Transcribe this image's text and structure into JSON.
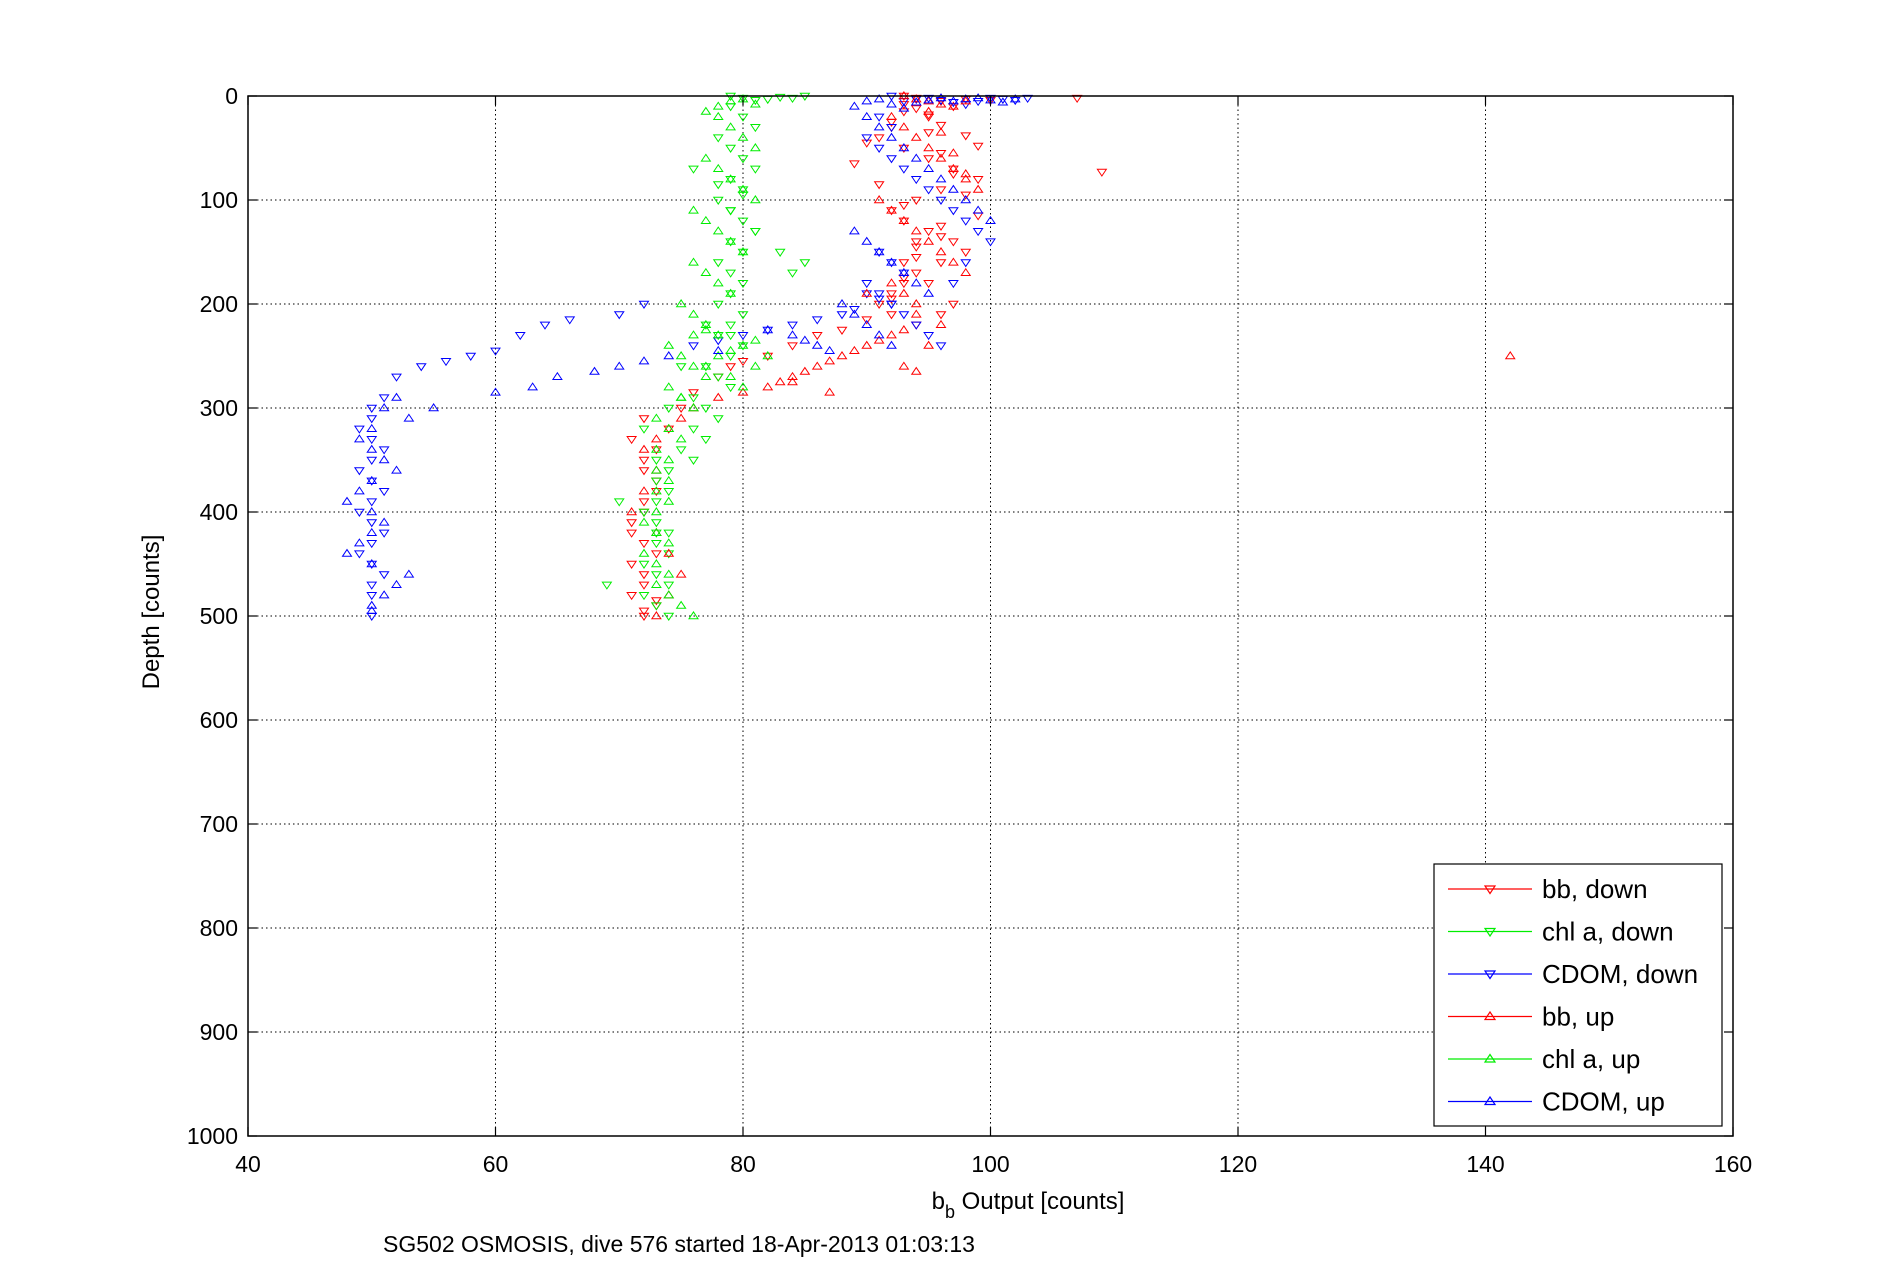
{
  "chart_data": {
    "type": "scatter",
    "xlabel_main": "b",
    "xlabel_sub": "b",
    "xlabel_rest": " Output [counts]",
    "ylabel": "Depth [counts]",
    "caption": "SG502 OSMOSIS, dive 576 started 18-Apr-2013 01:03:13",
    "xlim": [
      40,
      160
    ],
    "ylim": [
      0,
      1000
    ],
    "y_reversed": true,
    "grid": true,
    "legend_position": "bottom-right",
    "x_ticks": [
      "40",
      "60",
      "80",
      "100",
      "120",
      "140",
      "160"
    ],
    "y_ticks": [
      "0",
      "100",
      "200",
      "300",
      "400",
      "500",
      "600",
      "700",
      "800",
      "900",
      "1000"
    ],
    "series": [
      {
        "name": "bb, down",
        "color": "#ff0000",
        "marker": "triangle-down",
        "x": [
          93,
          94,
          96,
          98,
          100,
          97,
          95,
          92,
          91,
          93,
          95,
          97,
          99,
          96,
          94,
          92,
          93,
          95,
          97,
          98,
          96,
          94,
          93,
          92,
          91,
          93,
          95,
          96,
          97,
          98,
          99,
          96,
          94,
          93,
          92,
          94,
          96,
          93,
          91,
          89,
          90,
          92,
          93,
          94,
          95,
          96,
          98,
          99,
          107,
          109,
          94,
          93,
          95,
          97,
          92,
          90,
          96,
          94,
          88,
          86,
          84,
          82,
          80,
          79,
          78,
          76,
          75,
          74,
          73,
          72,
          73,
          72,
          71,
          73,
          72,
          71,
          72,
          73,
          72,
          71,
          72,
          71,
          72,
          73,
          72,
          71,
          72,
          72,
          73
        ],
        "y": [
          0,
          2,
          5,
          3,
          4,
          10,
          20,
          30,
          40,
          50,
          60,
          70,
          80,
          90,
          100,
          110,
          120,
          130,
          140,
          150,
          160,
          170,
          180,
          190,
          200,
          15,
          35,
          55,
          75,
          95,
          115,
          135,
          155,
          175,
          195,
          145,
          125,
          105,
          85,
          65,
          45,
          25,
          8,
          12,
          18,
          28,
          38,
          48,
          2,
          73,
          140,
          160,
          180,
          200,
          210,
          215,
          210,
          220,
          225,
          230,
          240,
          250,
          255,
          260,
          270,
          285,
          300,
          320,
          340,
          360,
          380,
          400,
          420,
          440,
          460,
          480,
          500,
          490,
          470,
          450,
          430,
          410,
          390,
          370,
          350,
          330,
          310,
          495,
          485
        ]
      },
      {
        "name": "chl a, down",
        "color": "#00ee00",
        "marker": "triangle-down",
        "x": [
          79,
          80,
          81,
          82,
          83,
          84,
          85,
          79,
          80,
          81,
          78,
          79,
          80,
          81,
          79,
          80,
          78,
          79,
          80,
          81,
          79,
          80,
          78,
          79,
          80,
          79,
          78,
          80,
          79,
          78,
          80,
          79,
          77,
          78,
          79,
          76,
          77,
          78,
          76,
          77,
          75,
          76,
          74,
          73,
          74,
          73,
          72,
          73,
          74,
          73,
          74,
          72,
          73,
          74,
          72,
          73,
          74,
          72,
          73,
          69,
          70,
          74,
          73,
          75,
          77,
          79,
          76,
          78,
          80,
          79,
          81,
          83,
          84,
          85
        ],
        "y": [
          0,
          2,
          4,
          3,
          1,
          2,
          0,
          10,
          20,
          30,
          40,
          50,
          60,
          70,
          80,
          90,
          100,
          110,
          120,
          130,
          140,
          150,
          160,
          170,
          180,
          190,
          200,
          210,
          220,
          230,
          240,
          250,
          260,
          270,
          280,
          290,
          300,
          310,
          320,
          330,
          340,
          350,
          360,
          370,
          380,
          390,
          400,
          410,
          420,
          430,
          440,
          450,
          460,
          470,
          480,
          490,
          500,
          320,
          350,
          470,
          390,
          300,
          420,
          260,
          220,
          230,
          70,
          85,
          95,
          110,
          130,
          150,
          170,
          160
        ]
      },
      {
        "name": "CDOM, down",
        "color": "#0000ff",
        "marker": "triangle-down",
        "x": [
          92,
          93,
          94,
          95,
          96,
          97,
          98,
          99,
          100,
          101,
          102,
          103,
          91,
          92,
          90,
          91,
          92,
          93,
          94,
          95,
          96,
          97,
          98,
          99,
          100,
          91,
          92,
          93,
          90,
          91,
          92,
          93,
          94,
          95,
          96,
          97,
          98,
          90,
          91,
          92,
          89,
          88,
          86,
          84,
          82,
          80,
          78,
          76,
          72,
          70,
          66,
          64,
          62,
          60,
          58,
          56,
          54,
          52,
          51,
          50,
          50,
          49,
          50,
          51,
          50,
          49,
          50,
          51,
          50,
          49,
          50,
          51,
          50,
          49,
          50,
          51,
          50,
          50,
          50
        ],
        "y": [
          0,
          5,
          3,
          2,
          4,
          6,
          8,
          5,
          2,
          3,
          4,
          2,
          20,
          30,
          40,
          50,
          60,
          70,
          80,
          90,
          100,
          110,
          120,
          130,
          140,
          150,
          160,
          170,
          180,
          190,
          200,
          210,
          220,
          230,
          240,
          180,
          160,
          190,
          195,
          200,
          205,
          210,
          215,
          220,
          225,
          230,
          235,
          240,
          200,
          210,
          215,
          220,
          230,
          245,
          250,
          255,
          260,
          270,
          290,
          300,
          310,
          320,
          330,
          340,
          350,
          360,
          370,
          380,
          390,
          400,
          410,
          420,
          430,
          440,
          450,
          460,
          470,
          480,
          500
        ]
      },
      {
        "name": "bb, up",
        "color": "#ff0000",
        "marker": "triangle-up",
        "x": [
          93,
          94,
          95,
          96,
          97,
          98,
          92,
          93,
          94,
          95,
          96,
          97,
          98,
          99,
          91,
          92,
          93,
          94,
          95,
          96,
          97,
          98,
          92,
          93,
          94,
          95,
          96,
          97,
          98,
          94,
          93,
          92,
          91,
          90,
          89,
          88,
          87,
          86,
          85,
          84,
          83,
          82,
          80,
          78,
          76,
          75,
          74,
          73,
          72,
          73,
          72,
          71,
          73,
          74,
          75,
          74,
          73,
          142,
          93,
          94,
          95,
          96,
          87,
          84,
          90
        ],
        "y": [
          0,
          3,
          5,
          8,
          10,
          5,
          20,
          30,
          40,
          50,
          60,
          70,
          80,
          90,
          100,
          110,
          120,
          130,
          140,
          150,
          160,
          170,
          180,
          190,
          200,
          15,
          35,
          55,
          75,
          210,
          225,
          230,
          235,
          240,
          245,
          250,
          255,
          260,
          265,
          270,
          275,
          280,
          285,
          290,
          300,
          310,
          320,
          330,
          340,
          360,
          380,
          400,
          420,
          440,
          460,
          480,
          500,
          250,
          260,
          265,
          240,
          220,
          285,
          275,
          190
        ]
      },
      {
        "name": "chl a, up",
        "color": "#00ee00",
        "marker": "triangle-up",
        "x": [
          77,
          78,
          79,
          80,
          81,
          78,
          79,
          80,
          81,
          77,
          78,
          79,
          80,
          81,
          76,
          77,
          78,
          79,
          80,
          76,
          77,
          78,
          79,
          75,
          76,
          77,
          78,
          74,
          75,
          76,
          77,
          74,
          75,
          76,
          73,
          74,
          75,
          73,
          74,
          73,
          74,
          73,
          74,
          73,
          72,
          73,
          74,
          72,
          73,
          74,
          73,
          74,
          75,
          76,
          77,
          78,
          79,
          80,
          81,
          76,
          77,
          82,
          81,
          79,
          80,
          75
        ],
        "y": [
          15,
          10,
          5,
          3,
          8,
          20,
          30,
          40,
          50,
          60,
          70,
          80,
          90,
          100,
          110,
          120,
          130,
          140,
          150,
          160,
          170,
          180,
          190,
          200,
          210,
          220,
          230,
          240,
          250,
          260,
          270,
          280,
          290,
          300,
          310,
          320,
          330,
          340,
          350,
          360,
          370,
          380,
          390,
          400,
          410,
          420,
          430,
          440,
          450,
          460,
          470,
          480,
          490,
          500,
          260,
          250,
          245,
          240,
          235,
          230,
          225,
          250,
          260,
          270,
          280,
          290
        ]
      },
      {
        "name": "CDOM, up",
        "color": "#0000ff",
        "marker": "triangle-up",
        "x": [
          89,
          90,
          91,
          92,
          93,
          94,
          95,
          96,
          97,
          98,
          99,
          100,
          101,
          102,
          90,
          91,
          92,
          93,
          94,
          95,
          96,
          97,
          98,
          99,
          100,
          89,
          90,
          91,
          92,
          93,
          94,
          95,
          88,
          89,
          90,
          91,
          92,
          87,
          86,
          85,
          84,
          82,
          78,
          74,
          72,
          70,
          68,
          65,
          63,
          60,
          55,
          53,
          52,
          51,
          50,
          49,
          50,
          51,
          52,
          50,
          49,
          48,
          50,
          51,
          50,
          49,
          48,
          50,
          53,
          52,
          51,
          50,
          50
        ],
        "y": [
          10,
          5,
          3,
          8,
          12,
          6,
          4,
          2,
          5,
          3,
          2,
          4,
          6,
          3,
          20,
          30,
          40,
          50,
          60,
          70,
          80,
          90,
          100,
          110,
          120,
          130,
          140,
          150,
          160,
          170,
          180,
          190,
          200,
          210,
          220,
          230,
          240,
          245,
          240,
          235,
          230,
          225,
          245,
          250,
          255,
          260,
          265,
          270,
          280,
          285,
          300,
          310,
          290,
          300,
          320,
          330,
          340,
          350,
          360,
          370,
          380,
          390,
          400,
          410,
          420,
          430,
          440,
          450,
          460,
          470,
          480,
          490,
          495
        ]
      }
    ]
  }
}
